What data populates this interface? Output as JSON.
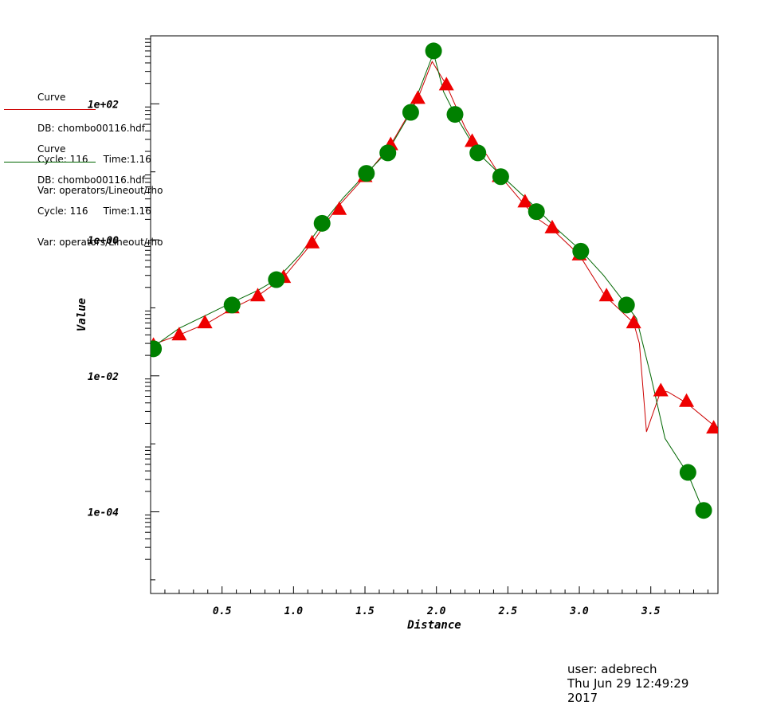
{
  "legend": [
    {
      "title": "Curve",
      "db": "DB: chombo00116.hdf",
      "cycle": "Cycle: 116",
      "time": "Time:1.16",
      "var": "Var: operators/Lineout/rho",
      "color": "#cc0000"
    },
    {
      "title": "Curve",
      "db": "DB: chombo00116.hdf",
      "cycle": "Cycle: 116",
      "time": "Time:1.16",
      "var": "Var: operators/Lineout/rho",
      "color": "#006600"
    }
  ],
  "footer": {
    "user": "user: adebrech",
    "date": "Thu Jun 29 12:49:29 2017"
  },
  "chart_data": {
    "type": "line",
    "xlabel": "Distance",
    "ylabel": "Value",
    "xlim": [
      0,
      3.97
    ],
    "ylim": [
      6.3e-06,
      1000
    ],
    "yscale": "log",
    "xticks": [
      0.5,
      1.0,
      1.5,
      2.0,
      2.5,
      3.0,
      3.5
    ],
    "xtick_labels": [
      "0.5",
      "1.0",
      "1.5",
      "2.0",
      "2.5",
      "3.0",
      "3.5"
    ],
    "yticks": [
      0.0001,
      0.01,
      1,
      100
    ],
    "ytick_labels": [
      "1e-04",
      "1e-02",
      "1e+00",
      "1e+02"
    ],
    "grid": false,
    "series": [
      {
        "color": "#cc0000",
        "marker": "triangle",
        "line": [
          [
            0.0,
            0.028
          ],
          [
            0.2,
            0.04
          ],
          [
            0.4,
            0.06
          ],
          [
            0.58,
            0.1
          ],
          [
            0.75,
            0.15
          ],
          [
            0.93,
            0.28
          ],
          [
            1.13,
            0.9
          ],
          [
            1.3,
            2.9
          ],
          [
            1.5,
            8.5
          ],
          [
            1.68,
            25
          ],
          [
            1.87,
            120
          ],
          [
            1.97,
            420
          ],
          [
            2.07,
            190
          ],
          [
            2.2,
            45
          ],
          [
            2.25,
            30
          ],
          [
            2.35,
            18
          ],
          [
            2.45,
            8.5
          ],
          [
            2.6,
            3.6
          ],
          [
            2.7,
            2.1
          ],
          [
            2.8,
            1.5
          ],
          [
            3.0,
            0.6
          ],
          [
            3.18,
            0.15
          ],
          [
            3.38,
            0.06
          ],
          [
            3.42,
            0.03
          ],
          [
            3.47,
            0.0015
          ],
          [
            3.57,
            0.006
          ],
          [
            3.62,
            0.0058
          ],
          [
            3.75,
            0.004
          ],
          [
            3.95,
            0.0018
          ]
        ],
        "markers": [
          [
            0.02,
            0.028
          ],
          [
            0.2,
            0.04
          ],
          [
            0.38,
            0.06
          ],
          [
            0.57,
            0.1
          ],
          [
            0.75,
            0.15
          ],
          [
            0.93,
            0.28
          ],
          [
            1.13,
            0.9
          ],
          [
            1.32,
            2.8
          ],
          [
            1.5,
            8.5
          ],
          [
            1.68,
            25
          ],
          [
            1.87,
            120
          ],
          [
            2.07,
            190
          ],
          [
            2.25,
            28
          ],
          [
            2.44,
            8.5
          ],
          [
            2.62,
            3.6
          ],
          [
            2.81,
            1.5
          ],
          [
            3.0,
            0.6
          ],
          [
            3.19,
            0.15
          ],
          [
            3.38,
            0.06
          ],
          [
            3.57,
            0.006
          ],
          [
            3.75,
            0.0042
          ],
          [
            3.94,
            0.0017
          ]
        ]
      },
      {
        "color": "#006600",
        "marker": "circle",
        "line": [
          [
            0.01,
            0.026
          ],
          [
            0.2,
            0.05
          ],
          [
            0.4,
            0.08
          ],
          [
            0.57,
            0.12
          ],
          [
            0.75,
            0.18
          ],
          [
            0.88,
            0.26
          ],
          [
            1.05,
            0.62
          ],
          [
            1.2,
            1.7
          ],
          [
            1.35,
            4.2
          ],
          [
            1.51,
            9.5
          ],
          [
            1.66,
            20
          ],
          [
            1.82,
            75
          ],
          [
            1.98,
            560
          ],
          [
            2.05,
            150
          ],
          [
            2.13,
            70
          ],
          [
            2.29,
            19
          ],
          [
            2.45,
            9
          ],
          [
            2.6,
            4.6
          ],
          [
            2.7,
            2.9
          ],
          [
            2.85,
            1.4
          ],
          [
            3.01,
            0.7
          ],
          [
            3.17,
            0.3
          ],
          [
            3.33,
            0.11
          ],
          [
            3.4,
            0.07
          ],
          [
            3.5,
            0.01
          ],
          [
            3.6,
            0.0012
          ],
          [
            3.76,
            0.00036
          ],
          [
            3.87,
            0.0001
          ]
        ],
        "markers": [
          [
            0.02,
            0.025
          ],
          [
            0.57,
            0.11
          ],
          [
            0.88,
            0.26
          ],
          [
            1.2,
            1.75
          ],
          [
            1.51,
            9.5
          ],
          [
            1.66,
            19
          ],
          [
            1.82,
            75
          ],
          [
            1.98,
            600
          ],
          [
            2.13,
            70
          ],
          [
            2.29,
            19
          ],
          [
            2.45,
            8.5
          ],
          [
            2.7,
            2.6
          ],
          [
            3.01,
            0.68
          ],
          [
            3.33,
            0.11
          ],
          [
            3.76,
            0.00038
          ],
          [
            3.87,
            0.000105
          ]
        ]
      }
    ]
  }
}
